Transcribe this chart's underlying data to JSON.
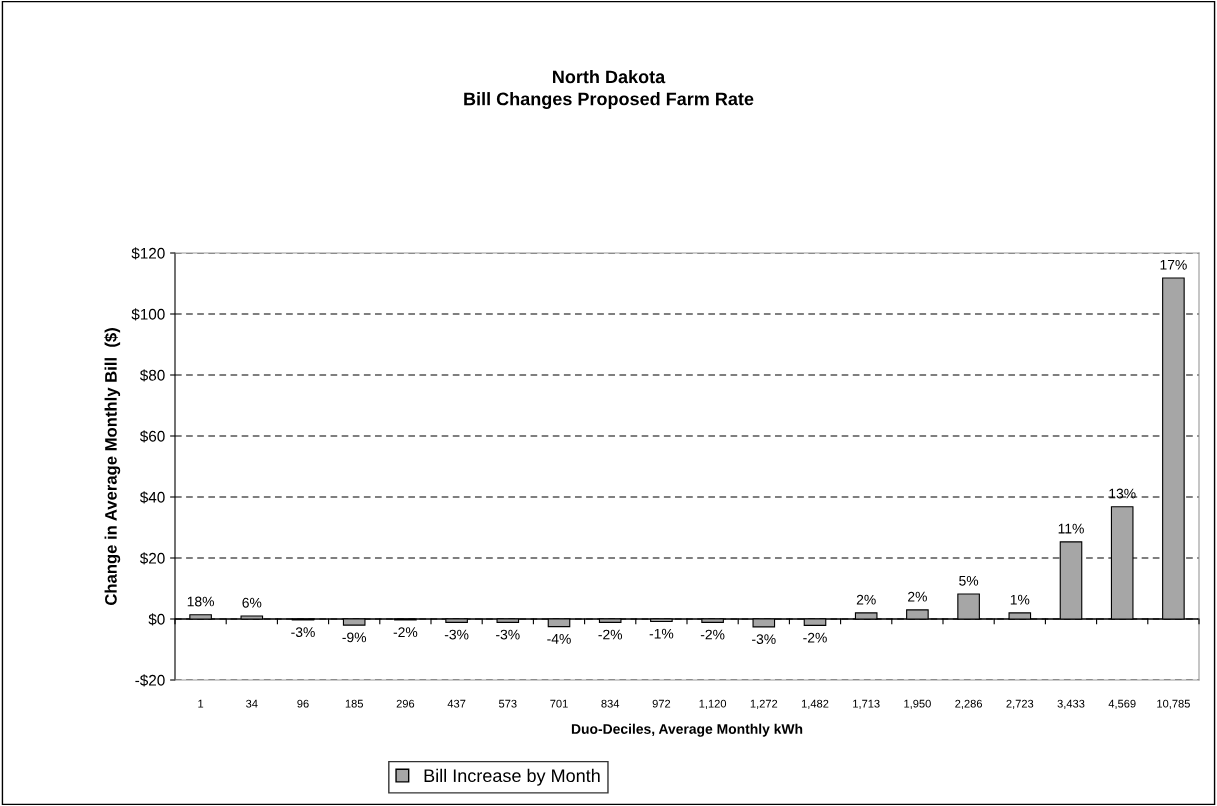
{
  "chart_data": {
    "type": "bar",
    "title": "North Dakota\nBill Changes Proposed Farm Rate",
    "xlabel": "Duo-Deciles, Average Monthly kWh",
    "ylabel": "Change in Average Monthly Bill  ($)",
    "categories": [
      "1",
      "34",
      "96",
      "185",
      "296",
      "437",
      "573",
      "701",
      "834",
      "972",
      "1,120",
      "1,272",
      "1,482",
      "1,713",
      "1,950",
      "2,286",
      "2,723",
      "3,433",
      "4,569",
      "10,785"
    ],
    "series": [
      {
        "name": "Bill Increase by Month",
        "color": "#a6a6a6",
        "values": [
          1.4,
          1.0,
          -0.3,
          -2.0,
          -0.3,
          -1.1,
          -1.1,
          -2.5,
          -1.1,
          -0.8,
          -1.1,
          -2.6,
          -2.1,
          2.0,
          3.0,
          8.2,
          2.0,
          25.3,
          36.8,
          111.8
        ]
      }
    ],
    "annotations": [
      {
        "text": "18%",
        "x": "1",
        "y": 1.4
      },
      {
        "text": "6%",
        "x": "34",
        "y": 1.0
      },
      {
        "text": "-3%",
        "x": "96",
        "y": -0.3
      },
      {
        "text": "-9%",
        "x": "185",
        "y": -2.0
      },
      {
        "text": "-2%",
        "x": "296",
        "y": -0.3
      },
      {
        "text": "-3%",
        "x": "437",
        "y": -1.1
      },
      {
        "text": "-3%",
        "x": "573",
        "y": -1.1
      },
      {
        "text": "-4%",
        "x": "701",
        "y": -2.5
      },
      {
        "text": "-2%",
        "x": "834",
        "y": -1.1
      },
      {
        "text": "-1%",
        "x": "972",
        "y": -0.8
      },
      {
        "text": "-2%",
        "x": "1,120",
        "y": -1.1
      },
      {
        "text": "-3%",
        "x": "1,272",
        "y": -2.6
      },
      {
        "text": "-2%",
        "x": "1,482",
        "y": -2.1
      },
      {
        "text": "2%",
        "x": "1,713",
        "y": 2.0
      },
      {
        "text": "2%",
        "x": "1,950",
        "y": 3.0
      },
      {
        "text": "5%",
        "x": "2,286",
        "y": 8.2
      },
      {
        "text": "1%",
        "x": "2,723",
        "y": 2.0
      },
      {
        "text": "11%",
        "x": "3,433",
        "y": 25.3
      },
      {
        "text": "13%",
        "x": "4,569",
        "y": 36.8
      },
      {
        "text": "17%",
        "x": "10,785",
        "y": 111.8
      }
    ],
    "ylim": [
      -20,
      120
    ],
    "yticks": [
      {
        "value": -20,
        "label": "-$20"
      },
      {
        "value": 0,
        "label": "$0"
      },
      {
        "value": 20,
        "label": "$20"
      },
      {
        "value": 40,
        "label": "$40"
      },
      {
        "value": 60,
        "label": "$60"
      },
      {
        "value": 80,
        "label": "$80"
      },
      {
        "value": 100,
        "label": "$100"
      },
      {
        "value": 120,
        "label": "$120"
      }
    ],
    "grid": "y",
    "legend": "bottom"
  }
}
